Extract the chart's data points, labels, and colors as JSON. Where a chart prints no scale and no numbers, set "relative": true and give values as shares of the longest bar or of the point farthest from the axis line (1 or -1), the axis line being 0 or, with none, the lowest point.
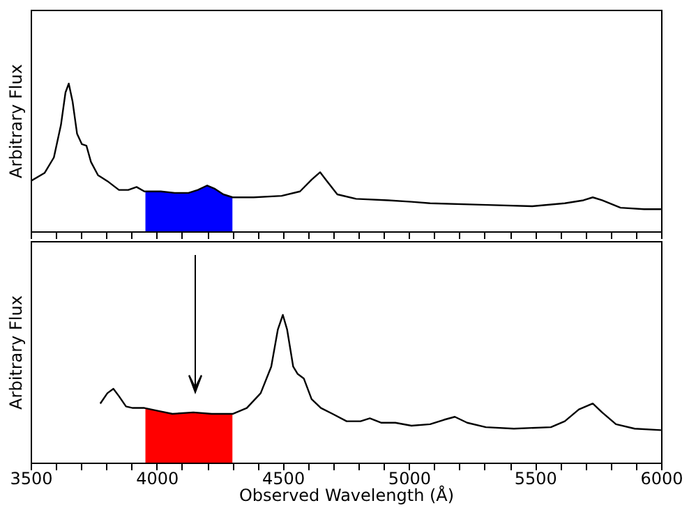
{
  "chart_data": [
    {
      "type": "line",
      "ylabel": "Arbitrary Flux",
      "relative": true,
      "xlim": [
        3500,
        6000
      ],
      "xticks": [
        3500,
        {
          "value": 3600,
          "label": null
        },
        {
          "value": 3700,
          "label": null
        },
        {
          "value": 3800,
          "label": null
        },
        {
          "value": 3900,
          "label": null
        },
        4000,
        {
          "value": 4100,
          "label": null
        },
        {
          "value": 4200,
          "label": null
        },
        {
          "value": 4300,
          "label": null
        },
        {
          "value": 4400,
          "label": null
        },
        4500,
        {
          "value": 4600,
          "label": null
        },
        {
          "value": 4700,
          "label": null
        },
        {
          "value": 4800,
          "label": null
        },
        {
          "value": 4900,
          "label": null
        },
        5000,
        {
          "value": 5100,
          "label": null
        },
        {
          "value": 5200,
          "label": null
        },
        {
          "value": 5300,
          "label": null
        },
        {
          "value": 5400,
          "label": null
        },
        5500,
        {
          "value": 5600,
          "label": null
        },
        {
          "value": 5700,
          "label": null
        },
        {
          "value": 5800,
          "label": null
        },
        {
          "value": 5900,
          "label": null
        },
        6000
      ],
      "tick_labels": false,
      "series": [
        {
          "type": "area",
          "color": "#0000ff",
          "x": [
            3955,
            4016,
            4071,
            4126,
            4163,
            4200,
            4228,
            4264,
            4300
          ],
          "values": [
            0.27,
            0.27,
            0.26,
            0.26,
            0.28,
            0.31,
            0.29,
            0.25,
            0.23
          ]
        },
        {
          "type": "line",
          "color": "#000000",
          "x": [
            3500,
            3555,
            3592,
            3620,
            3638,
            3651,
            3666,
            3684,
            3703,
            3721,
            3739,
            3767,
            3804,
            3850,
            3887,
            3920,
            3951,
            4016,
            4071,
            4126,
            4163,
            4200,
            4228,
            4264,
            4301,
            4384,
            4495,
            4568,
            4614,
            4648,
            4670,
            4716,
            4790,
            4918,
            5010,
            5084,
            5287,
            5489,
            5618,
            5692,
            5729,
            5766,
            5839,
            5932,
            6000
          ],
          "values": [
            0.34,
            0.395,
            0.5,
            0.72,
            0.94,
            1.0,
            0.88,
            0.66,
            0.59,
            0.58,
            0.47,
            0.38,
            0.34,
            0.28,
            0.28,
            0.3,
            0.27,
            0.27,
            0.26,
            0.26,
            0.28,
            0.31,
            0.29,
            0.25,
            0.23,
            0.23,
            0.24,
            0.27,
            0.35,
            0.4,
            0.35,
            0.25,
            0.22,
            0.21,
            0.2,
            0.19,
            0.18,
            0.17,
            0.19,
            0.21,
            0.23,
            0.21,
            0.16,
            0.15,
            0.15
          ]
        }
      ]
    },
    {
      "type": "line",
      "xlabel": "Observed Wavelength (Å)",
      "ylabel": "Arbitrary Flux",
      "relative": true,
      "xlim": [
        3500,
        6000
      ],
      "xticks": [
        3500,
        {
          "value": 3600,
          "label": null
        },
        {
          "value": 3700,
          "label": null
        },
        {
          "value": 3800,
          "label": null
        },
        {
          "value": 3900,
          "label": null
        },
        4000,
        {
          "value": 4100,
          "label": null
        },
        {
          "value": 4200,
          "label": null
        },
        {
          "value": 4300,
          "label": null
        },
        {
          "value": 4400,
          "label": null
        },
        4500,
        {
          "value": 4600,
          "label": null
        },
        {
          "value": 4700,
          "label": null
        },
        {
          "value": 4800,
          "label": null
        },
        {
          "value": 4900,
          "label": null
        },
        5000,
        {
          "value": 5100,
          "label": null
        },
        {
          "value": 5200,
          "label": null
        },
        {
          "value": 5300,
          "label": null
        },
        {
          "value": 5400,
          "label": null
        },
        5500,
        {
          "value": 5600,
          "label": null
        },
        {
          "value": 5700,
          "label": null
        },
        {
          "value": 5800,
          "label": null
        },
        {
          "value": 5900,
          "label": null
        },
        6000
      ],
      "tick_labels": "x",
      "series": [
        {
          "type": "area",
          "color": "#ff0000",
          "x": [
            3955,
            4007,
            4062,
            4145,
            4218,
            4300
          ],
          "values": [
            0.37,
            0.35,
            0.33,
            0.34,
            0.33,
            0.33
          ]
        },
        {
          "type": "line",
          "color": "#000000",
          "x": [
            3776,
            3804,
            3828,
            3850,
            3878,
            3905,
            3951,
            4007,
            4062,
            4145,
            4218,
            4301,
            4357,
            4412,
            4454,
            4480,
            4500,
            4517,
            4541,
            4559,
            4583,
            4614,
            4651,
            4697,
            4753,
            4808,
            4845,
            4891,
            4946,
            5010,
            5084,
            5139,
            5182,
            5231,
            5305,
            5416,
            5563,
            5618,
            5674,
            5729,
            5766,
            5821,
            5895,
            6000
          ],
          "values": [
            0.4,
            0.47,
            0.5,
            0.45,
            0.38,
            0.37,
            0.37,
            0.35,
            0.33,
            0.34,
            0.33,
            0.33,
            0.37,
            0.47,
            0.65,
            0.9,
            1.0,
            0.9,
            0.65,
            0.6,
            0.57,
            0.43,
            0.37,
            0.33,
            0.28,
            0.28,
            0.3,
            0.27,
            0.27,
            0.25,
            0.26,
            0.29,
            0.31,
            0.27,
            0.24,
            0.23,
            0.24,
            0.28,
            0.36,
            0.4,
            0.34,
            0.26,
            0.23,
            0.22
          ]
        }
      ]
    }
  ]
}
